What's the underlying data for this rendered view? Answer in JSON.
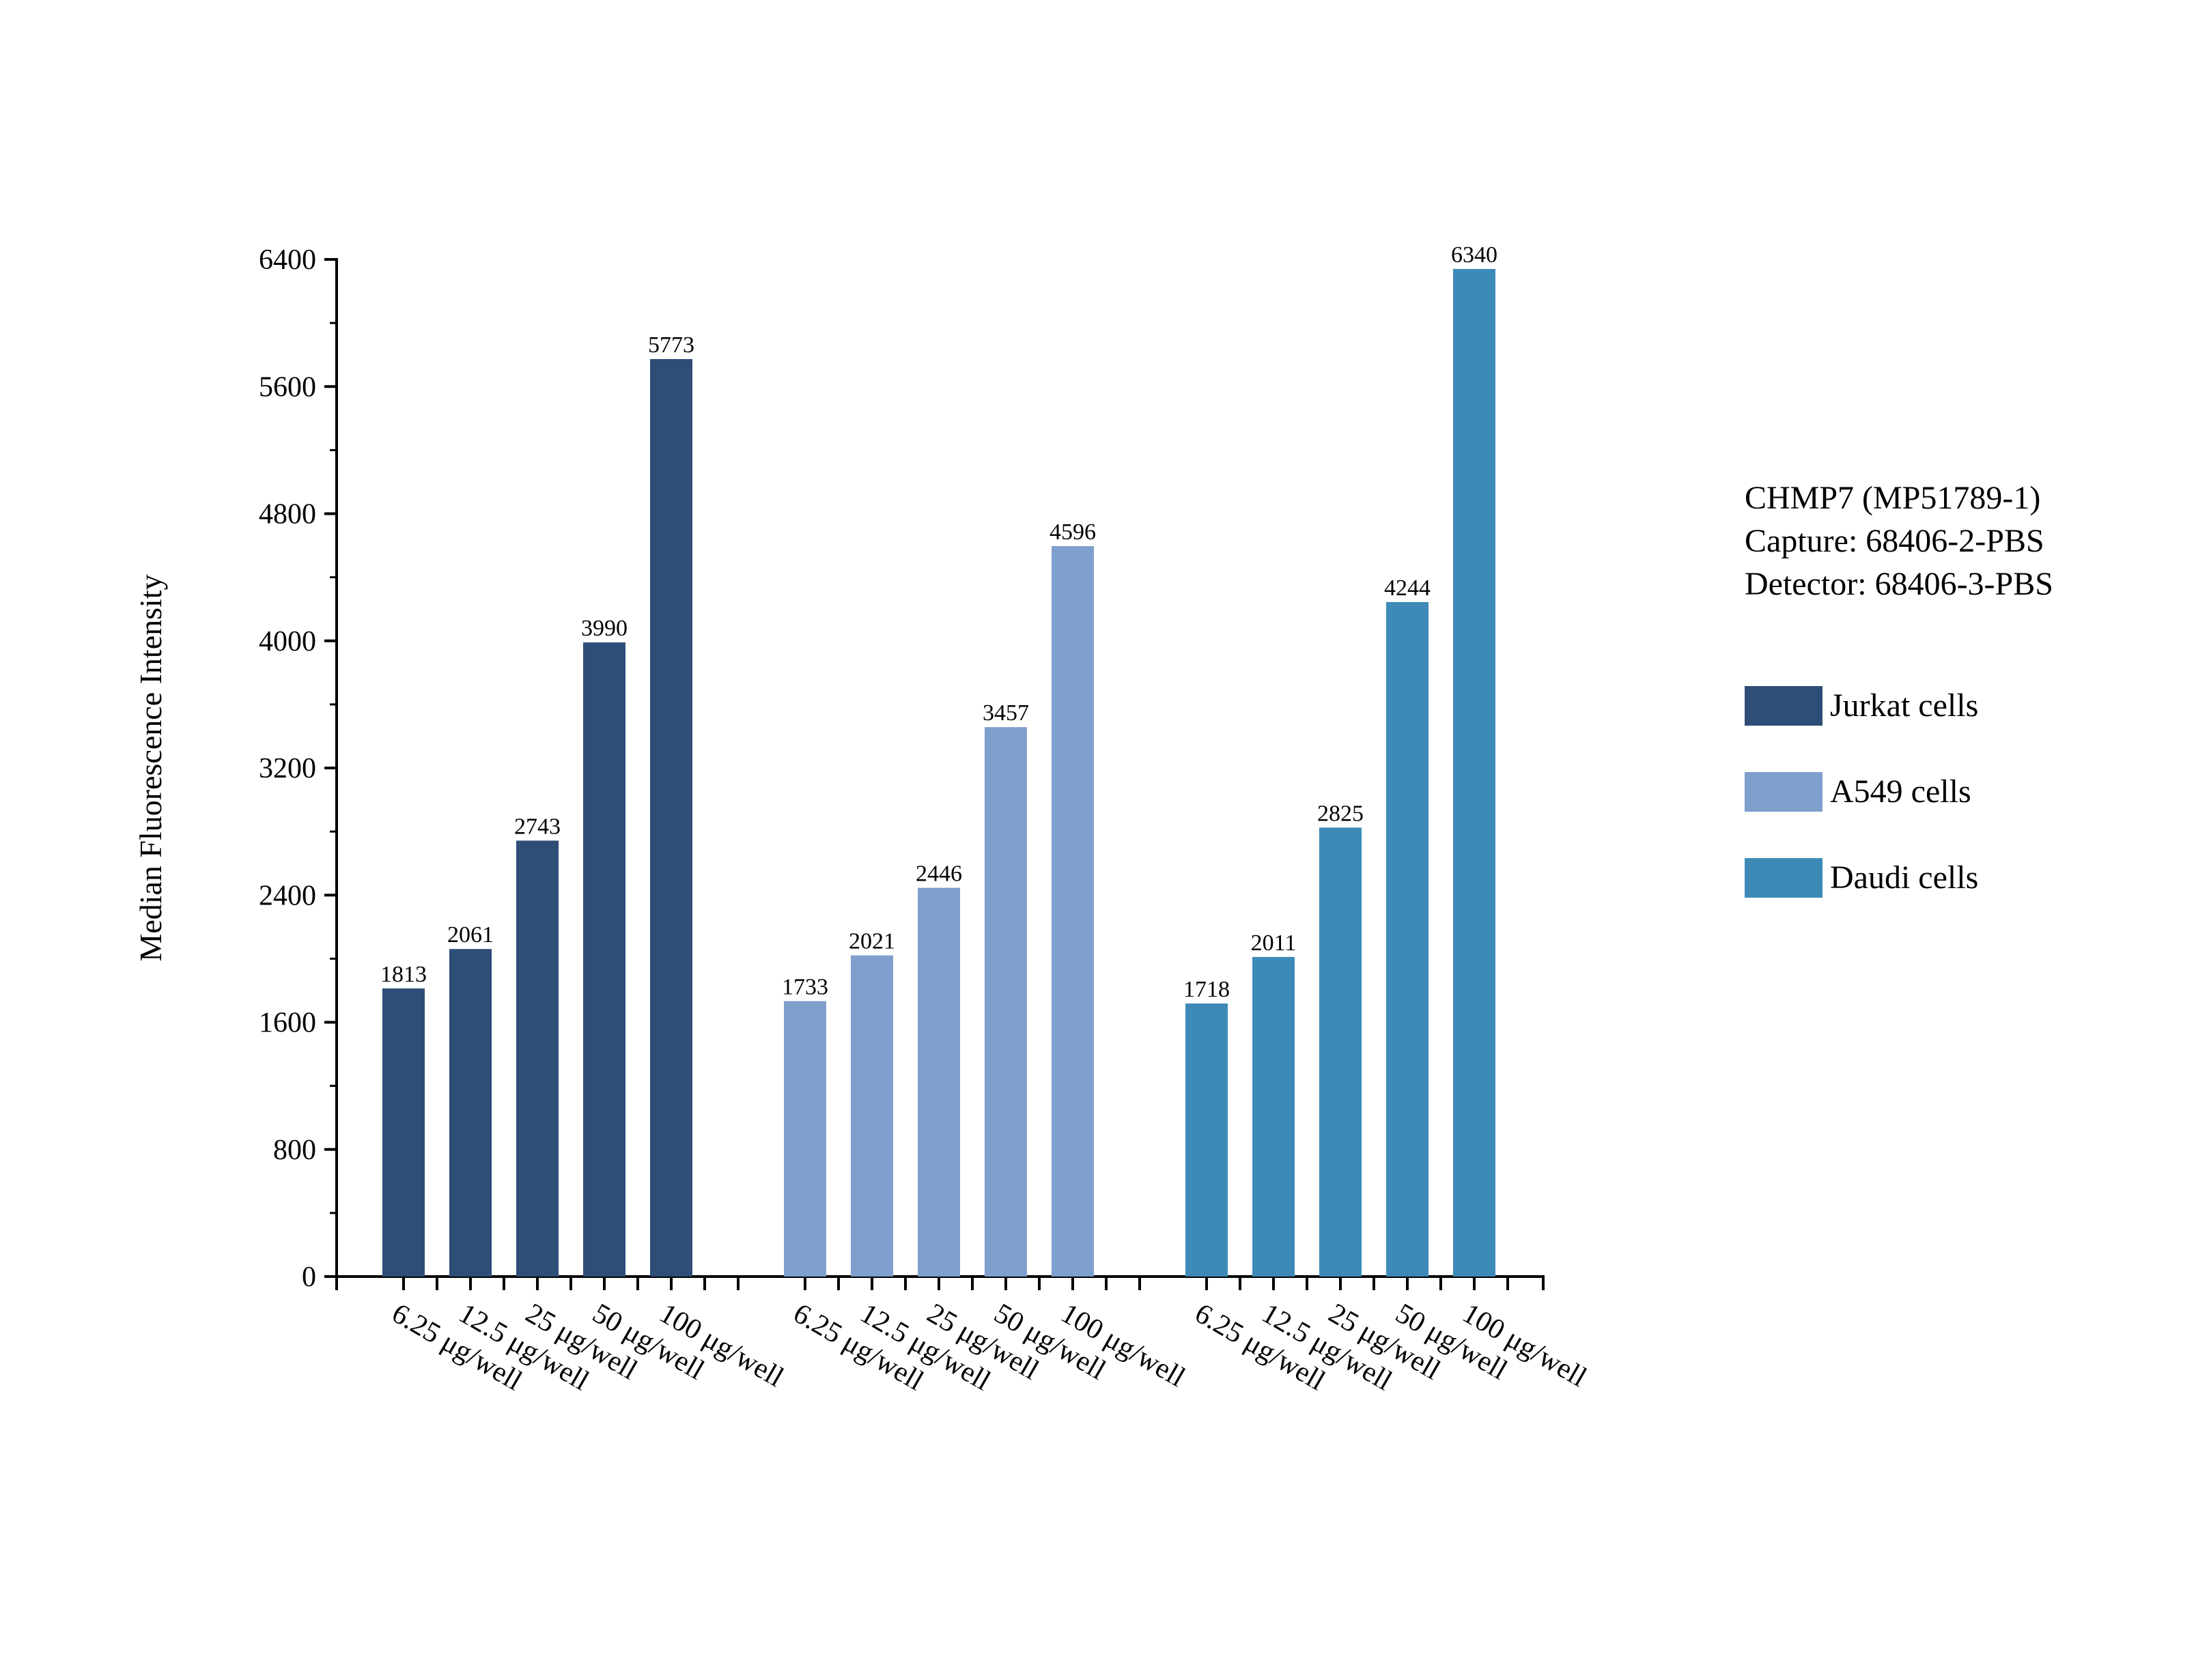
{
  "info": {
    "lines": [
      "CHMP7 (MP51789-1)",
      "Capture: 68406-2-PBS",
      "Detector: 68406-3-PBS"
    ]
  },
  "chart_data": {
    "type": "bar",
    "ylabel": "Median Fluorescence Intensity",
    "xlabel": "",
    "ylim": [
      0,
      6400
    ],
    "yticks": [
      0,
      800,
      1600,
      2400,
      3200,
      4000,
      4800,
      5600,
      6400
    ],
    "categories": [
      "6.25 μg/well",
      "12.5 μg/well",
      "25 μg/well",
      "50 μg/well",
      "100 μg/well"
    ],
    "legend_position": "right",
    "grid": false,
    "series": [
      {
        "name": "Jurkat cells",
        "color": "#2e4e77",
        "values": [
          1813,
          2061,
          2743,
          3990,
          5773
        ]
      },
      {
        "name": "A549 cells",
        "color": "#7f9fcc",
        "values": [
          1733,
          2021,
          2446,
          3457,
          4596
        ]
      },
      {
        "name": "Daudi cells",
        "color": "#3d8ab9",
        "values": [
          1718,
          2011,
          2825,
          4244,
          6340
        ]
      }
    ]
  }
}
